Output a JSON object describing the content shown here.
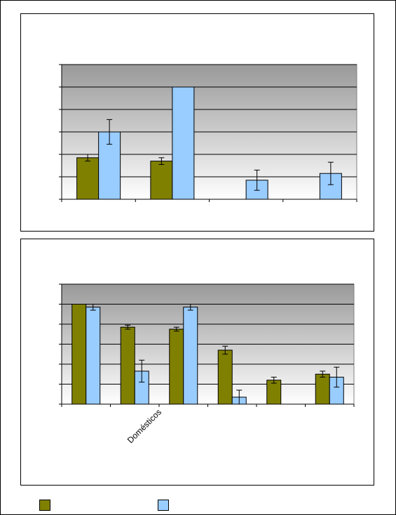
{
  "colors": {
    "series1": "#808000",
    "series2": "#99ccff",
    "plot_top": "#999999",
    "plot_bottom": "#ffffff"
  },
  "legend": {
    "series1_label": "",
    "series2_label": ""
  },
  "chart_data": [
    {
      "type": "bar",
      "title": "",
      "xlabel": "",
      "ylabel": "",
      "categories": [
        "",
        "",
        "",
        ""
      ],
      "ylim": [
        0,
        6
      ],
      "grid": true,
      "series": [
        {
          "values": [
            1.85,
            1.7,
            null,
            null
          ],
          "errors": [
            0.15,
            0.15,
            null,
            null
          ]
        },
        {
          "values": [
            3.0,
            5.0,
            0.85,
            1.15
          ],
          "errors": [
            0.55,
            null,
            0.45,
            0.5
          ]
        }
      ]
    },
    {
      "type": "bar",
      "title": "",
      "xlabel": "",
      "ylabel": "",
      "categories": [
        "",
        "Domésticos",
        "",
        "",
        "",
        ""
      ],
      "ylim": [
        0,
        6
      ],
      "grid": true,
      "series": [
        {
          "values": [
            5.0,
            3.85,
            3.75,
            2.7,
            1.2,
            1.5
          ],
          "errors": [
            null,
            0.1,
            0.1,
            0.2,
            0.15,
            0.15
          ]
        },
        {
          "values": [
            4.85,
            1.65,
            4.85,
            0.35,
            null,
            1.35
          ],
          "errors": [
            0.15,
            0.55,
            0.15,
            0.35,
            null,
            0.5
          ]
        }
      ]
    }
  ]
}
